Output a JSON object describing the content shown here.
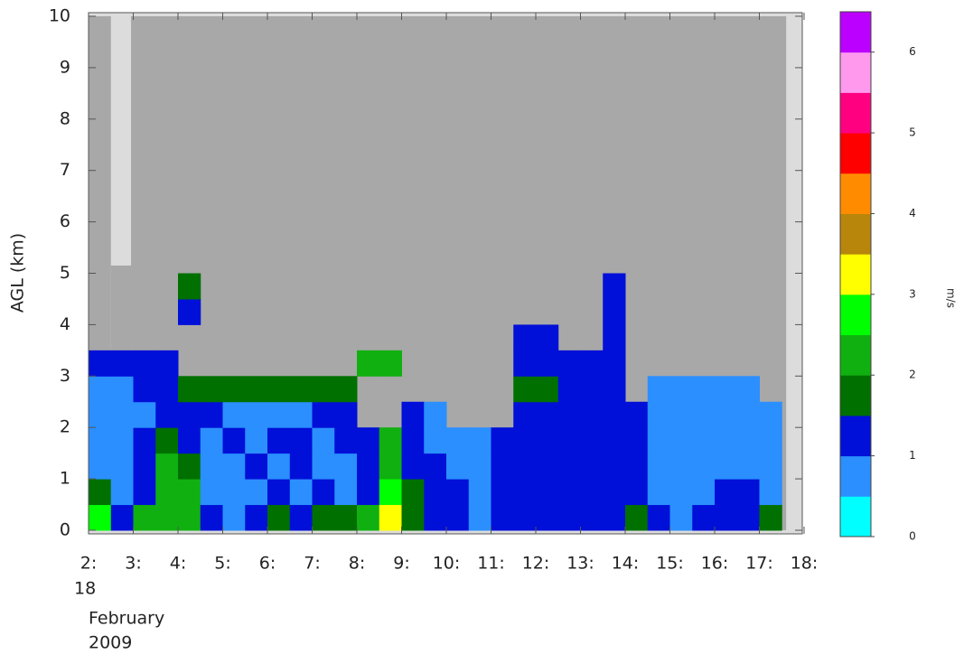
{
  "chart_data": {
    "type": "heatmap",
    "ylabel": "AGL (km)",
    "date_label": [
      "18",
      "February",
      "2009"
    ],
    "xlim": [
      2,
      18
    ],
    "ylim": [
      0,
      10
    ],
    "xticks": [
      {
        "value": 2,
        "label": "2:"
      },
      {
        "value": 3,
        "label": "3:"
      },
      {
        "value": 4,
        "label": "4:"
      },
      {
        "value": 5,
        "label": "5:"
      },
      {
        "value": 6,
        "label": "6:"
      },
      {
        "value": 7,
        "label": "7:"
      },
      {
        "value": 8,
        "label": "8:"
      },
      {
        "value": 9,
        "label": "9:"
      },
      {
        "value": 10,
        "label": "10:"
      },
      {
        "value": 11,
        "label": "11:"
      },
      {
        "value": 12,
        "label": "12:"
      },
      {
        "value": 13,
        "label": "13:"
      },
      {
        "value": 14,
        "label": "14:"
      },
      {
        "value": 15,
        "label": "15:"
      },
      {
        "value": 16,
        "label": "16:"
      },
      {
        "value": 17,
        "label": "17:"
      },
      {
        "value": 18,
        "label": "18:"
      }
    ],
    "yticks": [
      0,
      1,
      2,
      3,
      4,
      5,
      6,
      7,
      8,
      9,
      10
    ],
    "no_data_color": "#a8a8a8",
    "background_color": "#dcdcdc",
    "observed": [
      [
        2,
        2.5,
        0,
        10
      ],
      [
        2.5,
        2.95,
        0,
        5.15
      ],
      [
        2.95,
        17.6,
        0,
        10
      ]
    ],
    "x": [
      2.25,
      2.75,
      3.25,
      3.75,
      4.25,
      4.75,
      5.25,
      5.75,
      6.25,
      6.75,
      7.25,
      7.75,
      8.25,
      8.75,
      9.25,
      9.75,
      10.25,
      10.75,
      11.25,
      11.75,
      12.25,
      12.75,
      13.25,
      13.75,
      14.25,
      14.75,
      15.25,
      15.75,
      16.25,
      16.75,
      17.25
    ],
    "y": [
      0.25,
      0.75,
      1.25,
      1.75,
      2.25,
      2.75,
      3.25,
      3.75,
      4.25,
      4.75
    ],
    "z": [
      [
        2.6,
        1.2,
        2.2,
        2.3,
        2.2,
        1.2,
        0.8,
        1.2,
        1.7,
        1.2,
        1.8,
        1.7,
        2.2,
        3.2,
        1.8,
        1.2,
        1.2,
        0.8,
        1.2,
        1.2,
        1.2,
        1.2,
        1.2,
        1.2,
        1.7,
        1.2,
        0.8,
        1.2,
        1.2,
        1.2,
        1.8
      ],
      [
        1.7,
        0.8,
        1.2,
        2.2,
        2.2,
        0.8,
        0.8,
        0.8,
        1.2,
        0.8,
        1.2,
        0.8,
        1.2,
        2.6,
        1.8,
        1.2,
        1.2,
        0.8,
        1.2,
        1.2,
        1.2,
        1.2,
        1.2,
        1.2,
        1.2,
        0.8,
        0.8,
        0.8,
        1.2,
        1.2,
        0.8
      ],
      [
        0.8,
        0.8,
        1.2,
        2.2,
        1.8,
        0.8,
        0.8,
        1.2,
        0.8,
        1.2,
        0.8,
        0.8,
        1.2,
        2.3,
        1.2,
        1.2,
        0.8,
        0.8,
        1.2,
        1.2,
        1.2,
        1.2,
        1.2,
        1.2,
        1.2,
        0.8,
        0.8,
        0.8,
        0.8,
        0.8,
        0.8
      ],
      [
        0.8,
        0.8,
        1.2,
        1.8,
        1.2,
        0.8,
        1.2,
        0.8,
        1.2,
        1.2,
        0.8,
        1.2,
        1.2,
        2.2,
        1.2,
        0.8,
        0.8,
        0.8,
        1.2,
        1.2,
        1.2,
        1.2,
        1.2,
        1.2,
        1.2,
        0.8,
        0.8,
        0.8,
        0.8,
        0.8,
        0.8
      ],
      [
        0.8,
        0.8,
        0.8,
        1.2,
        1.2,
        1.2,
        0.8,
        0.8,
        0.8,
        0.8,
        1.2,
        1.2,
        null,
        null,
        1.2,
        0.8,
        null,
        null,
        null,
        1.2,
        1.2,
        1.2,
        1.2,
        1.2,
        1.2,
        0.8,
        0.8,
        0.8,
        0.8,
        0.8,
        0.8
      ],
      [
        0.8,
        0.8,
        1.2,
        1.2,
        1.7,
        1.7,
        1.7,
        1.7,
        1.7,
        1.7,
        1.7,
        1.7,
        null,
        null,
        null,
        null,
        null,
        null,
        null,
        1.7,
        1.7,
        1.2,
        1.2,
        1.2,
        null,
        0.8,
        0.8,
        0.8,
        0.8,
        0.8,
        null
      ],
      [
        1.4,
        1.4,
        1.2,
        1.2,
        null,
        null,
        null,
        null,
        null,
        null,
        null,
        null,
        2.2,
        2.2,
        null,
        null,
        null,
        null,
        null,
        1.2,
        1.2,
        1.2,
        1.2,
        1.2,
        null,
        null,
        null,
        null,
        null,
        null,
        null
      ],
      [
        null,
        null,
        null,
        null,
        null,
        null,
        null,
        null,
        null,
        null,
        null,
        null,
        null,
        null,
        null,
        null,
        null,
        null,
        null,
        1.2,
        1.2,
        null,
        null,
        1.2,
        null,
        null,
        null,
        null,
        null,
        null,
        null
      ],
      [
        null,
        null,
        null,
        null,
        1.2,
        null,
        null,
        null,
        null,
        null,
        null,
        null,
        null,
        null,
        null,
        null,
        null,
        null,
        null,
        null,
        null,
        null,
        null,
        1.2,
        null,
        null,
        null,
        null,
        null,
        null,
        null
      ],
      [
        null,
        null,
        null,
        null,
        1.7,
        null,
        null,
        null,
        null,
        null,
        null,
        null,
        null,
        null,
        null,
        null,
        null,
        null,
        null,
        null,
        null,
        null,
        null,
        1.2,
        null,
        null,
        null,
        null,
        null,
        null,
        null
      ]
    ],
    "colorbar": {
      "label": "m/s",
      "bounds": [
        0,
        6.5
      ],
      "ticks": [
        0,
        1,
        2,
        3,
        4,
        5,
        6
      ],
      "colors": [
        "#00ffff",
        "#2b8fff",
        "#0010d8",
        "#007000",
        "#10b010",
        "#00ff00",
        "#ffff00",
        "#b8860b",
        "#ff8c00",
        "#ff0000",
        "#ff0080",
        "#ff99ee",
        "#bb00ff"
      ]
    }
  }
}
